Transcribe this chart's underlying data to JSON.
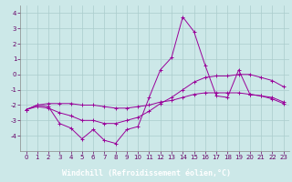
{
  "xlabel": "Windchill (Refroidissement éolien,°C)",
  "hours": [
    0,
    1,
    2,
    3,
    4,
    5,
    6,
    7,
    8,
    9,
    10,
    11,
    12,
    13,
    14,
    15,
    16,
    17,
    18,
    19,
    20,
    21,
    22,
    23
  ],
  "line1": [
    -2.3,
    -2.0,
    -2.1,
    -3.2,
    -3.5,
    -4.2,
    -3.6,
    -4.3,
    -4.5,
    -3.6,
    -3.4,
    -1.5,
    0.3,
    1.1,
    3.75,
    2.8,
    0.6,
    -1.4,
    -1.5,
    0.3,
    -1.3,
    -1.4,
    -1.5,
    -1.8
  ],
  "line2": [
    -2.3,
    -2.1,
    -2.2,
    -2.5,
    -2.7,
    -3.0,
    -3.0,
    -3.2,
    -3.2,
    -3.0,
    -2.8,
    -2.4,
    -1.9,
    -1.5,
    -1.0,
    -0.5,
    -0.2,
    -0.1,
    -0.1,
    0.0,
    0.0,
    -0.2,
    -0.4,
    -0.8
  ],
  "line3": [
    -2.3,
    -2.0,
    -1.9,
    -1.9,
    -1.9,
    -2.0,
    -2.0,
    -2.1,
    -2.2,
    -2.2,
    -2.1,
    -2.0,
    -1.8,
    -1.7,
    -1.5,
    -1.3,
    -1.2,
    -1.2,
    -1.2,
    -1.2,
    -1.3,
    -1.4,
    -1.6,
    -1.9
  ],
  "line_color": "#990099",
  "bg_color": "#cce8e8",
  "grid_color": "#aacccc",
  "xlabel_bg": "#9900aa",
  "ylim": [
    -5.0,
    4.5
  ],
  "yticks": [
    -4,
    -3,
    -2,
    -1,
    0,
    1,
    2,
    3,
    4
  ],
  "tick_fontsize": 5,
  "xlabel_fontsize": 6
}
